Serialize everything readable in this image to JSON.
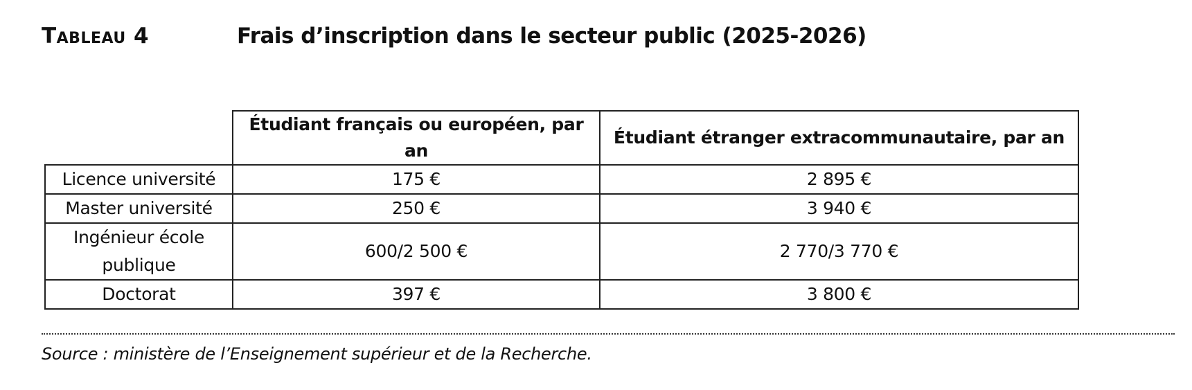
{
  "header": {
    "label": "Tableau 4",
    "title": "Frais d’inscription dans le secteur public (2025-2026)"
  },
  "table": {
    "columns": [
      "Étudiant français ou européen, par an",
      "Étudiant étranger extracommunautaire, par an"
    ],
    "rows": [
      {
        "label": "Licence université",
        "values": [
          "175 €",
          "2 895 €"
        ]
      },
      {
        "label": "Master université",
        "values": [
          "250 €",
          "3 940 €"
        ]
      },
      {
        "label": "Ingénieur école publique",
        "values": [
          "600/2 500 €",
          "2 770/3 770 €"
        ]
      },
      {
        "label": "Doctorat",
        "values": [
          "397 €",
          "3 800 €"
        ]
      }
    ]
  },
  "source": "Source : ministère de l’Enseignement supérieur et de la Recherche."
}
